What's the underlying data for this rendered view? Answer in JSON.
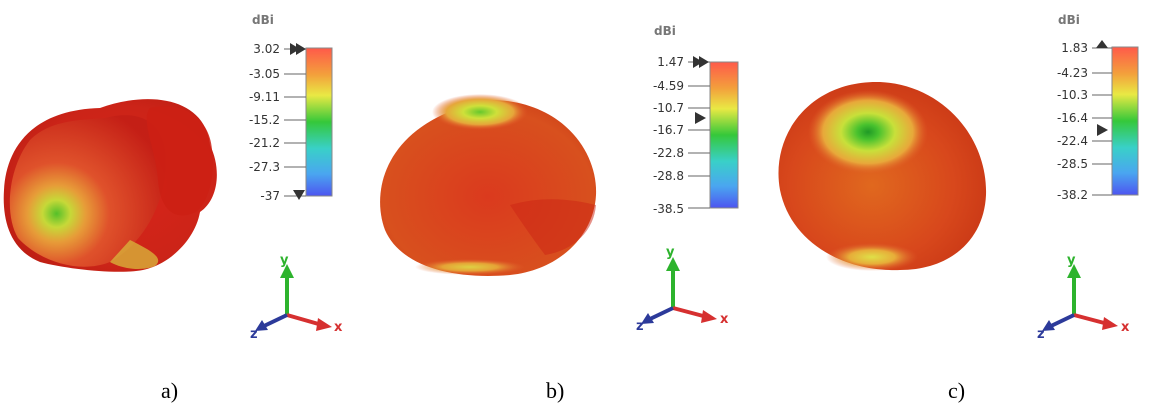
{
  "panels": [
    {
      "caption": "a)",
      "unit": "dBi",
      "ticks": [
        "3.02",
        "-3.05",
        "-9.11",
        "-15.2",
        "-21.2",
        "-27.3",
        "-37"
      ],
      "axes": {
        "x": "x",
        "y": "y",
        "z": "z"
      }
    },
    {
      "caption": "b)",
      "unit": "dBi",
      "ticks": [
        "1.47",
        "-4.59",
        "-10.7",
        "-16.7",
        "-22.8",
        "-28.8",
        "-38.5"
      ],
      "axes": {
        "x": "x",
        "y": "y",
        "z": "z"
      }
    },
    {
      "caption": "c)",
      "unit": "dBi",
      "ticks": [
        "1.83",
        "-4.23",
        "-10.3",
        "-16.4",
        "-22.4",
        "-28.5",
        "-38.2"
      ],
      "axes": {
        "x": "x",
        "y": "y",
        "z": "z"
      }
    }
  ],
  "colors": {
    "max": "#e8322a",
    "mid": "#e3e84a",
    "low": "#2fbf3a",
    "min": "#3d5ae8",
    "axis_y": "#2db32d",
    "axis_x": "#d63030",
    "axis_z": "#2c3a9a"
  }
}
